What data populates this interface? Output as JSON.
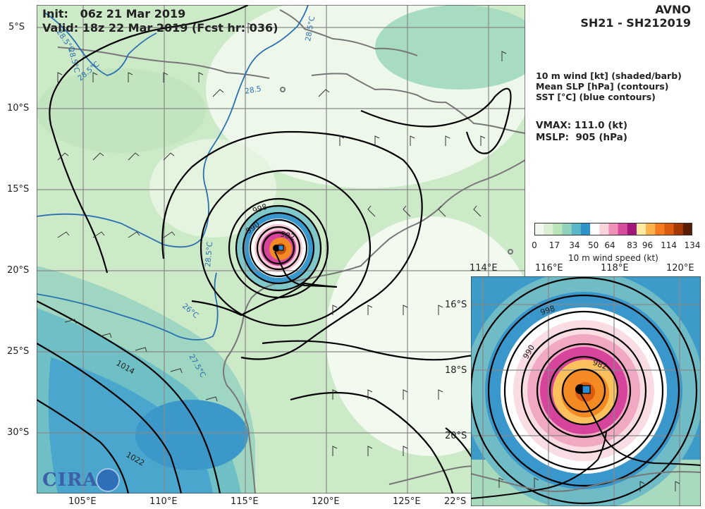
{
  "header": {
    "init": "Init:   06z 21 Mar 2019",
    "valid": "Valid: 18z 22 Mar 2019 (Fcst hr: 036)",
    "model": "AVNO",
    "storm": "SH21 - SH212019"
  },
  "legend_text": {
    "line1": "10 m wind [kt] (shaded/barb)",
    "line2": "Mean SLP [hPa] (contours)",
    "line3": "SST [°C] (blue contours)",
    "vmax": "VMAX: 111.0 (kt)",
    "mslp": "MSLP:  905 (hPa)"
  },
  "colorbar": {
    "ticks": [
      "0",
      "17",
      "34",
      "50",
      "64",
      "83",
      "96",
      "114",
      "134"
    ],
    "tick_values": [
      0,
      17,
      34,
      50,
      64,
      83,
      96,
      114,
      134
    ],
    "max": 134,
    "label": "10 m wind speed (kt)",
    "colors": [
      "#f2f8f0",
      "#dcefd6",
      "#b9e3b8",
      "#8fd1ba",
      "#5ab7c8",
      "#2f93c9",
      "#ffffff",
      "#f8d5dd",
      "#ee90b8",
      "#d64d9e",
      "#a3177a",
      "#ffe9a3",
      "#fbb24c",
      "#f37d1e",
      "#db5a0d",
      "#a33a04",
      "#5b1d02"
    ]
  },
  "main_map": {
    "lat_labels": [
      "5°S",
      "10°S",
      "15°S",
      "20°S",
      "25°S",
      "30°S"
    ],
    "lon_labels": [
      "105°E",
      "110°E",
      "115°E",
      "120°E",
      "125°E",
      "22°S"
    ],
    "slp_labels": [
      "998",
      "990",
      "982",
      "1014",
      "1022"
    ],
    "sst_labels": [
      "28.5°C",
      "28.5°C",
      "28.5°C",
      "28.5",
      "28.5°C",
      "28.5°C",
      "26°C",
      "27.5°C"
    ]
  },
  "inset_map": {
    "lon_labels": [
      "114°E",
      "116°E",
      "118°E",
      "120°E"
    ],
    "lat_labels": [
      "16°S",
      "18°S",
      "20°S"
    ],
    "slp_labels": [
      "998",
      "990",
      "982"
    ]
  },
  "logo": {
    "text": "CIRA"
  }
}
